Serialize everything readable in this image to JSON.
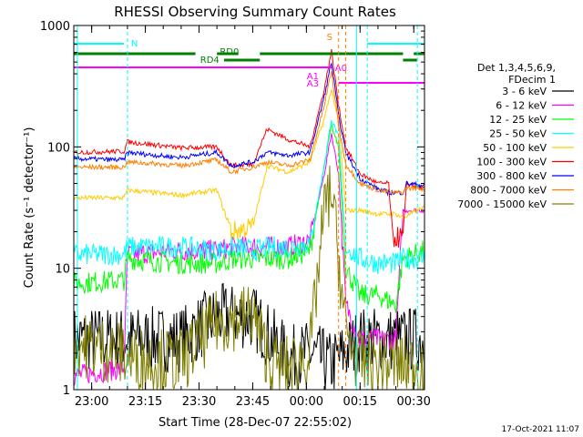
{
  "chart_data": {
    "type": "line",
    "title": "RHESSI Observing Summary Count Rates",
    "xlabel": "Start Time (28-Dec-07 22:55:02)",
    "ylabel": "Count Rate (s⁻¹ detector⁻¹)",
    "yscale": "log",
    "ylim": [
      1,
      1000
    ],
    "xlim_minutes_from_start": [
      0,
      98
    ],
    "x_ticks": [
      "23:00",
      "23:15",
      "23:30",
      "23:45",
      "00:00",
      "00:15",
      "00:30"
    ],
    "y_ticks": [
      "1",
      "10",
      "100",
      "1000"
    ],
    "legend_header": [
      "Det 1,3,4,5,6,9,",
      "FDecim 1"
    ],
    "legend_position": "right",
    "timestamp": "17-Oct-2021 11:07",
    "flag_labels": {
      "N": "N",
      "RD0": "RD0",
      "RD4": "RD4",
      "S": "S",
      "A1": "A1",
      "A0": "A0",
      "A3": "A3"
    },
    "series": [
      {
        "name": "3 - 6 keV",
        "color": "#000000",
        "points": [
          [
            0,
            2.6
          ],
          [
            15,
            2.6
          ],
          [
            30,
            2.6
          ],
          [
            40,
            4.0
          ],
          [
            50,
            4.0
          ],
          [
            60,
            1.8
          ],
          [
            66,
            2.0
          ],
          [
            72,
            1.6
          ],
          [
            80,
            2.6
          ],
          [
            90,
            2.6
          ],
          [
            98,
            2.6
          ]
        ]
      },
      {
        "name": "6 - 12 keV",
        "color": "#ff00ff",
        "points": [
          [
            0,
            1.3
          ],
          [
            14,
            1.5
          ],
          [
            15,
            13
          ],
          [
            30,
            14
          ],
          [
            40,
            14
          ],
          [
            45,
            15
          ],
          [
            50,
            15
          ],
          [
            55,
            15
          ],
          [
            60,
            15
          ],
          [
            66,
            17
          ],
          [
            70,
            60
          ],
          [
            72,
            130
          ],
          [
            74,
            60
          ],
          [
            76,
            5
          ],
          [
            80,
            2.6
          ],
          [
            85,
            2.6
          ],
          [
            90,
            2.6
          ],
          [
            92,
            30
          ],
          [
            98,
            30
          ]
        ]
      },
      {
        "name": "12 - 25 keV",
        "color": "#00ff00",
        "points": [
          [
            0,
            7.5
          ],
          [
            14,
            8
          ],
          [
            15,
            12
          ],
          [
            30,
            11
          ],
          [
            40,
            11
          ],
          [
            45,
            12
          ],
          [
            50,
            12
          ],
          [
            55,
            12
          ],
          [
            60,
            12
          ],
          [
            66,
            14
          ],
          [
            70,
            70
          ],
          [
            72,
            150
          ],
          [
            74,
            100
          ],
          [
            76,
            10
          ],
          [
            80,
            6
          ],
          [
            85,
            6
          ],
          [
            90,
            5
          ],
          [
            92,
            12
          ],
          [
            98,
            14
          ]
        ]
      },
      {
        "name": "25 - 50 keV",
        "color": "#00ffff",
        "points": [
          [
            0,
            13
          ],
          [
            14,
            13
          ],
          [
            15,
            15
          ],
          [
            30,
            15
          ],
          [
            40,
            14
          ],
          [
            45,
            15
          ],
          [
            50,
            14
          ],
          [
            55,
            15
          ],
          [
            60,
            15
          ],
          [
            66,
            16
          ],
          [
            70,
            70
          ],
          [
            72,
            170
          ],
          [
            74,
            120
          ],
          [
            76,
            15
          ],
          [
            80,
            12
          ],
          [
            85,
            11
          ],
          [
            90,
            11
          ],
          [
            92,
            12
          ],
          [
            98,
            12
          ]
        ]
      },
      {
        "name": "50 - 100 keV",
        "color": "#ffcc00",
        "points": [
          [
            0,
            38
          ],
          [
            14,
            38
          ],
          [
            15,
            44
          ],
          [
            30,
            40
          ],
          [
            40,
            44
          ],
          [
            44,
            20
          ],
          [
            50,
            22
          ],
          [
            54,
            70
          ],
          [
            60,
            62
          ],
          [
            66,
            75
          ],
          [
            70,
            170
          ],
          [
            72,
            300
          ],
          [
            74,
            160
          ],
          [
            76,
            30
          ],
          [
            80,
            30
          ],
          [
            85,
            28
          ],
          [
            90,
            28
          ],
          [
            92,
            26
          ],
          [
            98,
            32
          ]
        ]
      },
      {
        "name": "100 - 300 keV",
        "color": "#ff0000",
        "points": [
          [
            0,
            90
          ],
          [
            14,
            92
          ],
          [
            15,
            110
          ],
          [
            25,
            102
          ],
          [
            30,
            98
          ],
          [
            40,
            100
          ],
          [
            44,
            70
          ],
          [
            50,
            72
          ],
          [
            54,
            140
          ],
          [
            60,
            115
          ],
          [
            66,
            100
          ],
          [
            70,
            300
          ],
          [
            72,
            620
          ],
          [
            74,
            220
          ],
          [
            76,
            100
          ],
          [
            80,
            60
          ],
          [
            85,
            50
          ],
          [
            88,
            50
          ],
          [
            89,
            18
          ],
          [
            92,
            18
          ],
          [
            93,
            50
          ],
          [
            98,
            45
          ]
        ]
      },
      {
        "name": "300 - 800 keV",
        "color": "#0000ff",
        "points": [
          [
            0,
            80
          ],
          [
            14,
            78
          ],
          [
            15,
            90
          ],
          [
            25,
            84
          ],
          [
            30,
            82
          ],
          [
            40,
            90
          ],
          [
            44,
            70
          ],
          [
            50,
            75
          ],
          [
            54,
            90
          ],
          [
            60,
            85
          ],
          [
            66,
            90
          ],
          [
            70,
            260
          ],
          [
            72,
            500
          ],
          [
            74,
            180
          ],
          [
            76,
            90
          ],
          [
            80,
            55
          ],
          [
            85,
            45
          ],
          [
            88,
            42
          ],
          [
            92,
            42
          ],
          [
            93,
            50
          ],
          [
            98,
            48
          ]
        ]
      },
      {
        "name": "800 - 7000 keV",
        "color": "#ff8000",
        "points": [
          [
            0,
            68
          ],
          [
            14,
            68
          ],
          [
            15,
            75
          ],
          [
            25,
            72
          ],
          [
            30,
            70
          ],
          [
            40,
            78
          ],
          [
            44,
            62
          ],
          [
            50,
            68
          ],
          [
            54,
            75
          ],
          [
            60,
            70
          ],
          [
            66,
            78
          ],
          [
            70,
            220
          ],
          [
            72,
            420
          ],
          [
            74,
            150
          ],
          [
            76,
            72
          ],
          [
            80,
            50
          ],
          [
            85,
            44
          ],
          [
            88,
            42
          ],
          [
            92,
            42
          ],
          [
            93,
            46
          ],
          [
            98,
            45
          ]
        ]
      },
      {
        "name": "7000 - 15000 keV",
        "color": "#808000",
        "points": [
          [
            0,
            2.4
          ],
          [
            14,
            2.0
          ],
          [
            15,
            1.8
          ],
          [
            30,
            1.7
          ],
          [
            40,
            3.6
          ],
          [
            50,
            4.2
          ],
          [
            55,
            1.6
          ],
          [
            60,
            1.5
          ],
          [
            66,
            2.0
          ],
          [
            70,
            30
          ],
          [
            72,
            45
          ],
          [
            74,
            12
          ],
          [
            76,
            3
          ],
          [
            80,
            1.6
          ],
          [
            85,
            1.6
          ],
          [
            90,
            1.6
          ],
          [
            98,
            1.6
          ]
        ]
      }
    ]
  }
}
